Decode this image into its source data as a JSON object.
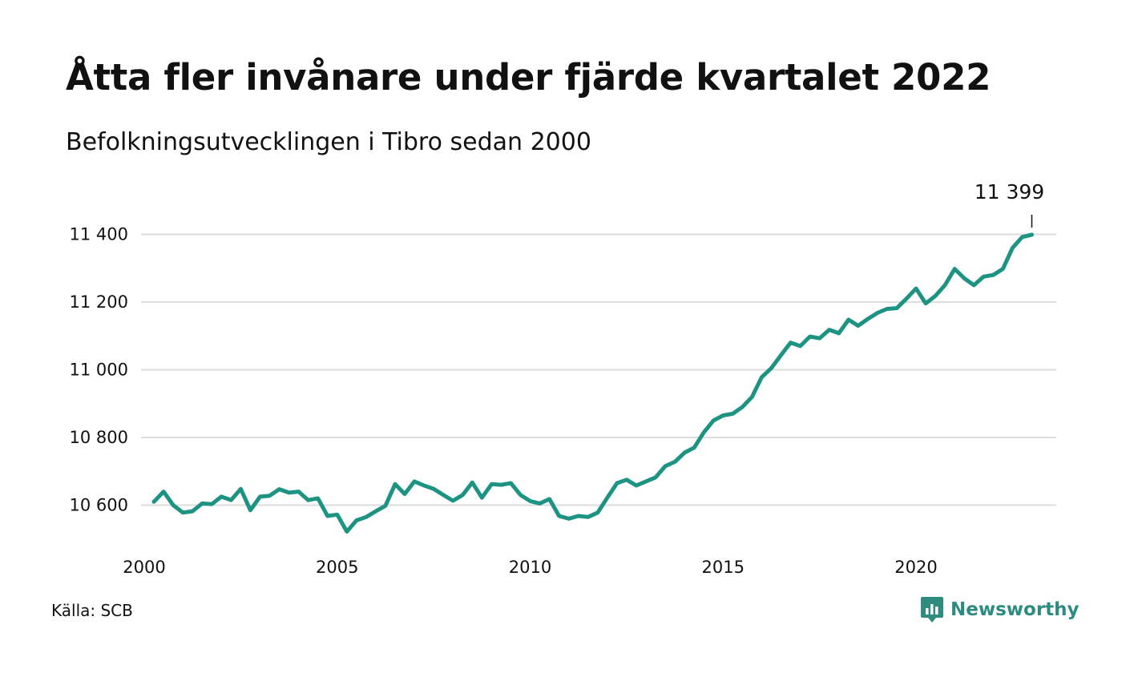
{
  "header": {
    "title": "Åtta fler invånare under fjärde kvartalet 2022",
    "subtitle": "Befolkningsutvecklingen i Tibro sedan 2000"
  },
  "footer": {
    "source": "Källa: SCB",
    "brand": "Newsworthy"
  },
  "colors": {
    "line": "#1d9383",
    "grid": "#dddddd",
    "brand": "#2e8b80"
  },
  "chart_data": {
    "type": "line",
    "title": "Åtta fler invånare under fjärde kvartalet 2022",
    "subtitle": "Befolkningsutvecklingen i Tibro sedan 2000",
    "xlabel": "",
    "ylabel": "",
    "xlim": [
      2000,
      2023.75
    ],
    "ylim": [
      10500,
      11450
    ],
    "x_ticks": [
      {
        "value": 2000,
        "label": "2000"
      },
      {
        "value": 2005,
        "label": "2005"
      },
      {
        "value": 2010,
        "label": "2010"
      },
      {
        "value": 2015,
        "label": "2015"
      },
      {
        "value": 2020,
        "label": "2020"
      }
    ],
    "y_ticks": [
      {
        "value": 10600,
        "label": "10 600"
      },
      {
        "value": 10800,
        "label": "10 800"
      },
      {
        "value": 11000,
        "label": "11 000"
      },
      {
        "value": 11200,
        "label": "11 200"
      },
      {
        "value": 11400,
        "label": "11 400"
      }
    ],
    "grid": true,
    "legend": "none",
    "annotation": {
      "x": 2023,
      "y": 11399,
      "label": "11 399"
    },
    "series": [
      {
        "quarters_start": "2000-Q1",
        "x": [
          2000.25,
          2000.5,
          2000.75,
          2001,
          2001.25,
          2001.5,
          2001.75,
          2002,
          2002.25,
          2002.5,
          2002.75,
          2003,
          2003.25,
          2003.5,
          2003.75,
          2004,
          2004.25,
          2004.5,
          2004.75,
          2005,
          2005.25,
          2005.5,
          2005.75,
          2006,
          2006.25,
          2006.5,
          2006.75,
          2007,
          2007.25,
          2007.5,
          2007.75,
          2008,
          2008.25,
          2008.5,
          2008.75,
          2009,
          2009.25,
          2009.5,
          2009.75,
          2010,
          2010.25,
          2010.5,
          2010.75,
          2011,
          2011.25,
          2011.5,
          2011.75,
          2012,
          2012.25,
          2012.5,
          2012.75,
          2013,
          2013.25,
          2013.5,
          2013.75,
          2014,
          2014.25,
          2014.5,
          2014.75,
          2015,
          2015.25,
          2015.5,
          2015.75,
          2016,
          2016.25,
          2016.5,
          2016.75,
          2017,
          2017.25,
          2017.5,
          2017.75,
          2018,
          2018.25,
          2018.5,
          2018.75,
          2019,
          2019.25,
          2019.5,
          2019.75,
          2020,
          2020.25,
          2020.5,
          2020.75,
          2021,
          2021.25,
          2021.5,
          2021.75,
          2022,
          2022.25,
          2022.5,
          2022.75,
          2023
        ],
        "values": [
          10610,
          10640,
          10600,
          10578,
          10582,
          10605,
          10603,
          10625,
          10615,
          10648,
          10585,
          10625,
          10628,
          10647,
          10637,
          10640,
          10615,
          10620,
          10568,
          10572,
          10522,
          10555,
          10565,
          10582,
          10598,
          10662,
          10633,
          10670,
          10658,
          10648,
          10630,
          10613,
          10630,
          10667,
          10622,
          10662,
          10660,
          10665,
          10630,
          10612,
          10605,
          10618,
          10568,
          10560,
          10568,
          10565,
          10578,
          10622,
          10665,
          10675,
          10658,
          10670,
          10682,
          10715,
          10728,
          10755,
          10770,
          10815,
          10850,
          10865,
          10870,
          10890,
          10920,
          10978,
          11005,
          11043,
          11080,
          11070,
          11098,
          11093,
          11118,
          11108,
          11148,
          11130,
          11150,
          11168,
          11180,
          11182,
          11210,
          11240,
          11196,
          11218,
          11250,
          11298,
          11270,
          11250,
          11275,
          11280,
          11298,
          11360,
          11392,
          11399
        ]
      }
    ]
  }
}
